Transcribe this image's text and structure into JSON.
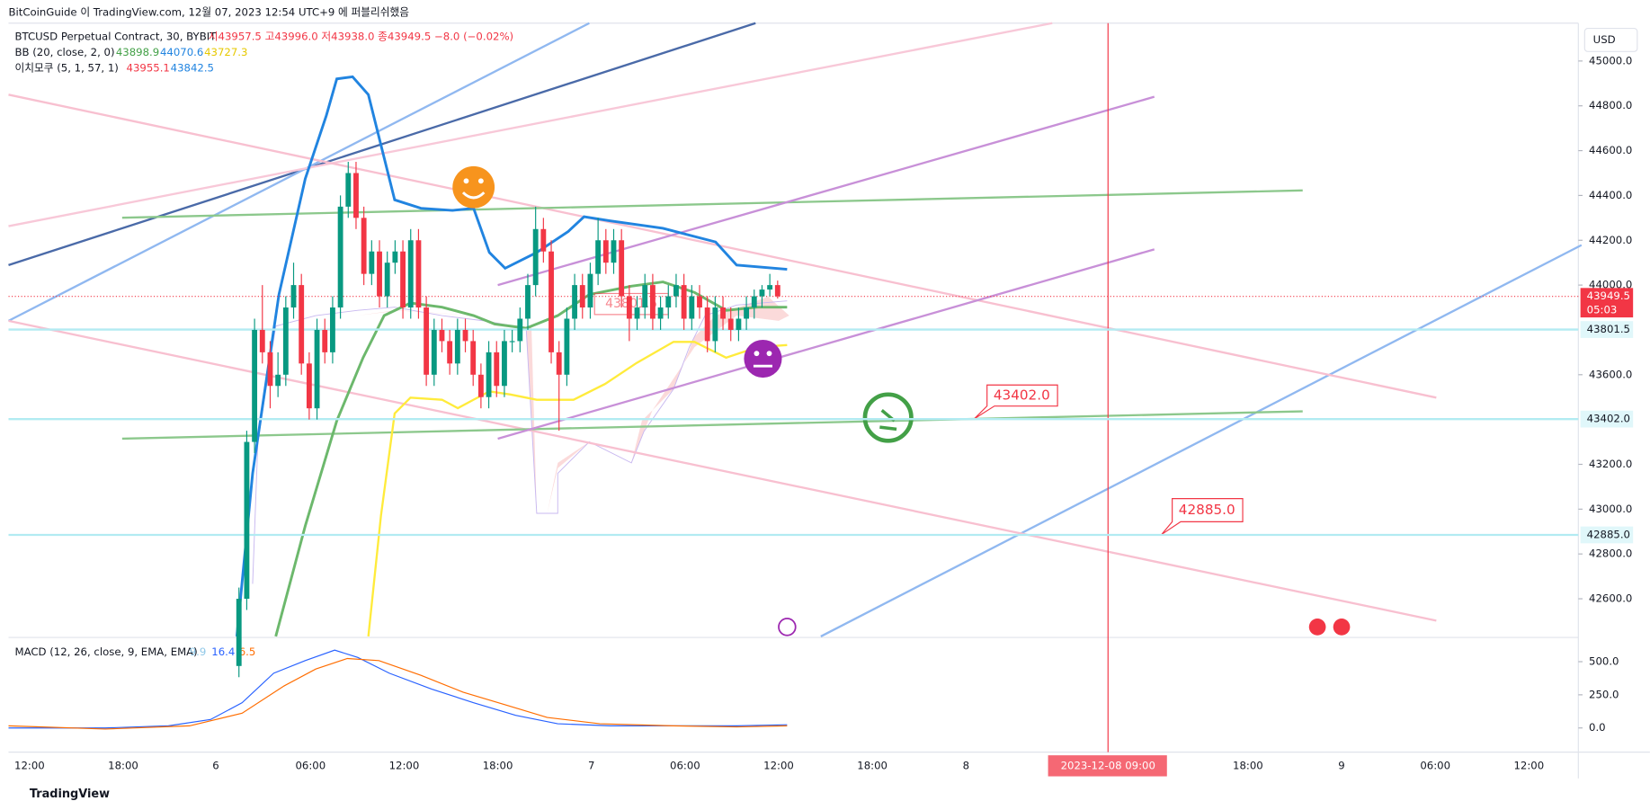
{
  "header": {
    "title": "BitCoinGuide 이 TradingView.com, 12월 07, 2023 12:54 UTC+9 에 퍼블리쉬했음",
    "currency": "USD",
    "footer": "TradingView"
  },
  "legend": {
    "symbol": "BTCUSD Perpetual Contract, 30, BYBIT",
    "ohlc": "시43957.5 고43996.0 저43938.0 종43949.5 −8.0 (−0.02%)",
    "bb": {
      "name": "BB (20, close, 2, 0)",
      "basis": "43898.9",
      "upper": "44070.6",
      "lower": "43727.3"
    },
    "ichimoku": {
      "name": "이치모쿠 (5, 1, 57, 1)",
      "a": "43955.1",
      "b": "43842.5"
    },
    "macd": {
      "name": "MACD (12, 26, close, 9, EMA, EMA)",
      "hist": "9.9",
      "macd": "16.4",
      "signal": "6.5"
    }
  },
  "price_axis": {
    "ticks": [
      {
        "value": 45000,
        "label": "45000.0"
      },
      {
        "value": 44800,
        "label": "44800.0"
      },
      {
        "value": 44600,
        "label": "44600.0"
      },
      {
        "value": 44400,
        "label": "44400.0"
      },
      {
        "value": 44200,
        "label": "44200.0"
      },
      {
        "value": 44000,
        "label": "44000.0"
      },
      {
        "value": 43600,
        "label": "43600.0"
      },
      {
        "value": 43200,
        "label": "43200.0"
      },
      {
        "value": 43000,
        "label": "43000.0"
      },
      {
        "value": 42800,
        "label": "42800.0"
      },
      {
        "value": 42600,
        "label": "42600.0"
      }
    ],
    "last": {
      "value": 43949.5,
      "label": "43949.5",
      "countdown": "05:03"
    },
    "levels": [
      {
        "value": 43801.5,
        "label": "43801.5"
      },
      {
        "value": 43402.0,
        "label": "43402.0"
      },
      {
        "value": 42885.0,
        "label": "42885.0"
      }
    ]
  },
  "macd_axis": {
    "ticks": [
      {
        "value": 500,
        "label": "500.0"
      },
      {
        "value": 250,
        "label": "250.0"
      },
      {
        "value": 0,
        "label": "0.0"
      }
    ]
  },
  "time_axis": {
    "labels": [
      "12:00",
      "18:00",
      "6",
      "06:00",
      "12:00",
      "18:00",
      "7",
      "06:00",
      "12:00",
      "18:00",
      "8",
      "18:00",
      "9",
      "06:00",
      "12:00"
    ],
    "crosshair": "2023-12-08   09:00"
  },
  "annotations": [
    "43402.0",
    "42885.0",
    "43801.5"
  ],
  "candles": [
    [
      42300,
      42650,
      42250,
      42600
    ],
    [
      42600,
      43350,
      42550,
      43300
    ],
    [
      43300,
      43850,
      43250,
      43800
    ],
    [
      43800,
      44000,
      43650,
      43700
    ],
    [
      43700,
      43750,
      43450,
      43550
    ],
    [
      43550,
      43700,
      43500,
      43600
    ],
    [
      43600,
      43950,
      43550,
      43900
    ],
    [
      43900,
      44100,
      43850,
      44000
    ],
    [
      44000,
      44050,
      43600,
      43650
    ],
    [
      43650,
      43700,
      43400,
      43450
    ],
    [
      43450,
      43850,
      43400,
      43800
    ],
    [
      43800,
      43850,
      43650,
      43700
    ],
    [
      43700,
      43950,
      43650,
      43900
    ],
    [
      43900,
      44400,
      43850,
      44350
    ],
    [
      44350,
      44550,
      44300,
      44500
    ],
    [
      44500,
      44550,
      44250,
      44300
    ],
    [
      44300,
      44350,
      44000,
      44050
    ],
    [
      44050,
      44200,
      44000,
      44150
    ],
    [
      44150,
      44200,
      43900,
      43950
    ],
    [
      43950,
      44150,
      43900,
      44100
    ],
    [
      44100,
      44200,
      44050,
      44150
    ],
    [
      44150,
      44200,
      43850,
      43900
    ],
    [
      43900,
      44250,
      43850,
      44200
    ],
    [
      44200,
      44250,
      43850,
      43900
    ],
    [
      43900,
      43950,
      43550,
      43600
    ],
    [
      43600,
      43850,
      43550,
      43800
    ],
    [
      43800,
      43850,
      43700,
      43750
    ],
    [
      43750,
      43800,
      43600,
      43650
    ],
    [
      43650,
      43850,
      43600,
      43800
    ],
    [
      43800,
      43850,
      43700,
      43750
    ],
    [
      43750,
      43800,
      43550,
      43600
    ],
    [
      43600,
      43650,
      43450,
      43500
    ],
    [
      43500,
      43750,
      43450,
      43700
    ],
    [
      43700,
      43750,
      43500,
      43550
    ],
    [
      43550,
      43800,
      43500,
      43750
    ],
    [
      43750,
      43800,
      43700,
      43750
    ],
    [
      43750,
      43900,
      43700,
      43850
    ],
    [
      43850,
      44050,
      43800,
      44000
    ],
    [
      44000,
      44350,
      43950,
      44250
    ],
    [
      44250,
      44300,
      44100,
      44150
    ],
    [
      44150,
      44200,
      43650,
      43700
    ],
    [
      43700,
      43750,
      43350,
      43600
    ],
    [
      43600,
      43900,
      43550,
      43850
    ],
    [
      43850,
      44050,
      43800,
      44000
    ],
    [
      44000,
      44050,
      43850,
      43900
    ],
    [
      43900,
      44100,
      43850,
      44050
    ],
    [
      44050,
      44300,
      44000,
      44200
    ],
    [
      44200,
      44250,
      44050,
      44100
    ],
    [
      44100,
      44250,
      44050,
      44200
    ],
    [
      44200,
      44250,
      43900,
      43950
    ],
    [
      43950,
      44000,
      43750,
      43850
    ],
    [
      43850,
      43950,
      43800,
      43900
    ],
    [
      43900,
      44050,
      43850,
      44000
    ],
    [
      44000,
      44050,
      43800,
      43850
    ],
    [
      43850,
      43950,
      43800,
      43900
    ],
    [
      43900,
      44000,
      43850,
      43950
    ],
    [
      43950,
      44050,
      43900,
      44000
    ],
    [
      44000,
      44050,
      43800,
      43850
    ],
    [
      43850,
      44000,
      43800,
      43950
    ],
    [
      43950,
      44000,
      43850,
      43900
    ],
    [
      43900,
      43950,
      43700,
      43750
    ],
    [
      43750,
      43950,
      43700,
      43900
    ],
    [
      43900,
      43950,
      43800,
      43850
    ],
    [
      43850,
      43900,
      43750,
      43800
    ],
    [
      43800,
      43900,
      43750,
      43850
    ],
    [
      43850,
      43950,
      43800,
      43900
    ],
    [
      43900,
      43980,
      43850,
      43950
    ],
    [
      43950,
      44000,
      43900,
      43980
    ],
    [
      43980,
      44050,
      43950,
      44000
    ],
    [
      44000,
      44020,
      43940,
      43950
    ]
  ]
}
